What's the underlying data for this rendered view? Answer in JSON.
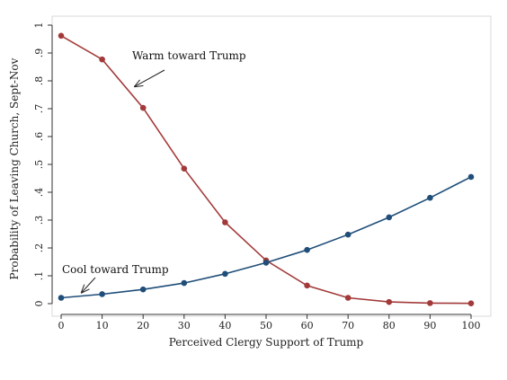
{
  "chart_data": {
    "type": "line",
    "title": "",
    "xlabel": "Perceived Clergy Support of Trump",
    "ylabel": "Probability of Leaving Church, Sept-Nov",
    "x": [
      0,
      10,
      20,
      30,
      40,
      50,
      60,
      70,
      80,
      90,
      100
    ],
    "xlim": [
      0,
      100
    ],
    "ylim": [
      0,
      1
    ],
    "x_ticks": [
      "0",
      "10",
      "20",
      "30",
      "40",
      "50",
      "60",
      "70",
      "80",
      "90",
      "100"
    ],
    "y_ticks": [
      "0",
      ".1",
      ".2",
      ".3",
      ".4",
      ".5",
      ".6",
      ".7",
      ".8",
      ".9",
      "1"
    ],
    "grid": false,
    "series": [
      {
        "name": "Warm toward Trump",
        "color": "#a33a3a",
        "values": [
          0.962,
          0.877,
          0.703,
          0.485,
          0.292,
          0.155,
          0.065,
          0.021,
          0.006,
          0.002,
          0.001
        ]
      },
      {
        "name": "Cool toward Trump",
        "color": "#1f4e79",
        "values": [
          0.021,
          0.034,
          0.051,
          0.074,
          0.107,
          0.147,
          0.193,
          0.248,
          0.31,
          0.38,
          0.455
        ]
      }
    ],
    "annotations": [
      {
        "text": "Warm toward Trump",
        "series": 0,
        "arrow_to_x": 18,
        "arrow_to_y": 0.78
      },
      {
        "text": "Cool toward Trump",
        "series": 1,
        "arrow_to_x": 5,
        "arrow_to_y": 0.04
      }
    ]
  }
}
